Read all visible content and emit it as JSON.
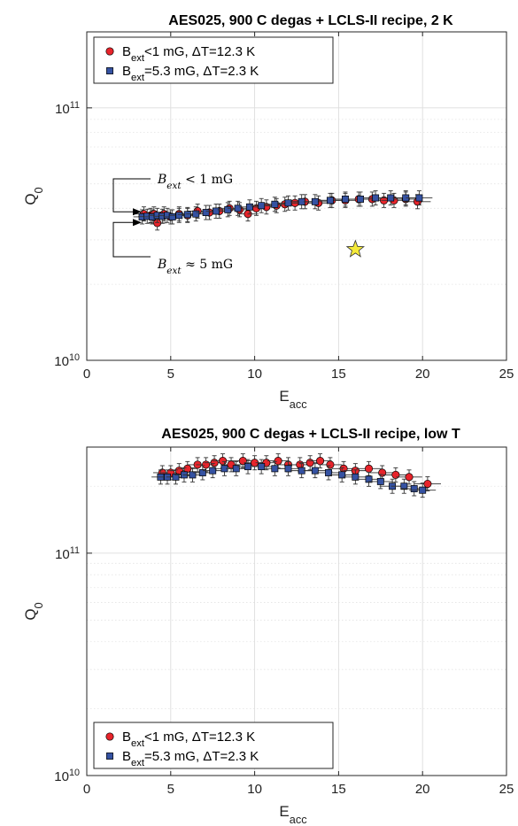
{
  "chart_data": [
    {
      "type": "scatter",
      "title": "AES025, 900 C degas + LCLS-II recipe, 2 K",
      "xlabel": "E",
      "xlabel_sub": "acc",
      "ylabel": "Q",
      "ylabel_sub": "0",
      "xlim": [
        0,
        25
      ],
      "ylim": [
        10000000000.0,
        200000000000.0
      ],
      "yscale": "log",
      "xticks": [
        "0",
        "5",
        "10",
        "15",
        "20",
        "25"
      ],
      "yticks": [
        {
          "base": "10",
          "exp": "10"
        },
        {
          "base": "10",
          "exp": "11"
        }
      ],
      "grid": true,
      "legend_position": "top-left",
      "series": [
        {
          "name_main": "B",
          "name_sub": "ext",
          "name_rest": "<1 mG, ΔT=12.3 K",
          "marker": "circle",
          "color": "#e8242b",
          "x": [
            3.4,
            3.8,
            4.0,
            4.2,
            4.6,
            5.0,
            5.5,
            6.0,
            6.6,
            7.3,
            7.9,
            8.5,
            9.1,
            9.6,
            10.1,
            10.7,
            11.3,
            11.8,
            12.4,
            13.0,
            13.8,
            14.6,
            15.4,
            16.2,
            17.0,
            17.7,
            18.3,
            19.0,
            19.7
          ],
          "y": [
            38000000000.0,
            37500000000.0,
            38000000000.0,
            35000000000.0,
            38000000000.0,
            37000000000.0,
            38000000000.0,
            37500000000.0,
            39000000000.0,
            38500000000.0,
            39000000000.0,
            40000000000.0,
            39500000000.0,
            38000000000.0,
            40000000000.0,
            40500000000.0,
            41000000000.0,
            41500000000.0,
            42000000000.0,
            42500000000.0,
            42000000000.0,
            43000000000.0,
            43000000000.0,
            43500000000.0,
            43500000000.0,
            43000000000.0,
            43000000000.0,
            43500000000.0,
            42500000000.0
          ]
        },
        {
          "name_main": "B",
          "name_sub": "ext",
          "name_rest": "=5.3 mG, ΔT=2.3 K",
          "marker": "square",
          "color": "#3552a2",
          "x": [
            3.3,
            3.6,
            3.9,
            4.2,
            4.5,
            4.8,
            5.1,
            5.5,
            6.0,
            6.5,
            7.1,
            7.7,
            8.4,
            9.0,
            9.7,
            10.4,
            11.2,
            12.0,
            12.8,
            13.6,
            14.5,
            15.4,
            16.3,
            17.2,
            18.1,
            19.0,
            19.8
          ],
          "y": [
            37000000000.0,
            37200000000.0,
            37000000000.0,
            37500000000.0,
            37200000000.0,
            37500000000.0,
            37000000000.0,
            37500000000.0,
            37800000000.0,
            38000000000.0,
            38500000000.0,
            39000000000.0,
            39500000000.0,
            40000000000.0,
            40500000000.0,
            41000000000.0,
            41500000000.0,
            42000000000.0,
            42500000000.0,
            42500000000.0,
            43000000000.0,
            43500000000.0,
            43500000000.0,
            44000000000.0,
            44000000000.0,
            44000000000.0,
            44000000000.0
          ]
        }
      ],
      "extra_points": [
        {
          "marker": "star",
          "color": "#f5ea3a",
          "x": 16.0,
          "y": 27500000000.0
        }
      ],
      "annotations": [
        {
          "main": "B",
          "sub": "ext",
          "rest": " < 1 mG"
        },
        {
          "main": "B",
          "sub": "ext",
          "rest": " ≈ 5 mG"
        }
      ]
    },
    {
      "type": "scatter",
      "title": "AES025, 900 C degas + LCLS-II recipe, low T",
      "xlabel": "E",
      "xlabel_sub": "acc",
      "ylabel": "Q",
      "ylabel_sub": "0",
      "xlim": [
        0,
        25
      ],
      "ylim": [
        10000000000.0,
        300000000000.0
      ],
      "yscale": "log",
      "xticks": [
        "0",
        "5",
        "10",
        "15",
        "20",
        "25"
      ],
      "yticks": [
        {
          "base": "10",
          "exp": "10"
        },
        {
          "base": "10",
          "exp": "11"
        }
      ],
      "grid": true,
      "legend_position": "bottom-left",
      "series": [
        {
          "name_main": "B",
          "name_sub": "ext",
          "name_rest": "<1 mG, ΔT=12.3 K",
          "marker": "circle",
          "color": "#e8242b",
          "x": [
            4.5,
            5.0,
            5.5,
            6.0,
            6.6,
            7.1,
            7.6,
            8.1,
            8.6,
            9.3,
            10.0,
            10.7,
            11.4,
            12.0,
            12.7,
            13.3,
            13.9,
            14.5,
            15.3,
            16.0,
            16.8,
            17.6,
            18.4,
            19.2,
            20.3
          ],
          "y": [
            230000000000.0,
            230000000000.0,
            235000000000.0,
            240000000000.0,
            250000000000.0,
            250000000000.0,
            255000000000.0,
            260000000000.0,
            250000000000.0,
            260000000000.0,
            255000000000.0,
            255000000000.0,
            260000000000.0,
            250000000000.0,
            250000000000.0,
            255000000000.0,
            260000000000.0,
            250000000000.0,
            240000000000.0,
            235000000000.0,
            240000000000.0,
            230000000000.0,
            225000000000.0,
            220000000000.0,
            205000000000.0
          ]
        },
        {
          "name_main": "B",
          "name_sub": "ext",
          "name_rest": "=5.3 mG, ΔT=2.3 K",
          "marker": "square",
          "color": "#3552a2",
          "x": [
            4.4,
            4.8,
            5.3,
            5.8,
            6.3,
            6.9,
            7.5,
            8.2,
            8.9,
            9.6,
            10.4,
            11.2,
            12.0,
            12.8,
            13.6,
            14.4,
            15.2,
            16.0,
            16.8,
            17.5,
            18.2,
            18.9,
            19.5,
            20.0
          ],
          "y": [
            220000000000.0,
            220000000000.0,
            220000000000.0,
            225000000000.0,
            225000000000.0,
            230000000000.0,
            235000000000.0,
            240000000000.0,
            240000000000.0,
            245000000000.0,
            245000000000.0,
            240000000000.0,
            240000000000.0,
            235000000000.0,
            235000000000.0,
            230000000000.0,
            225000000000.0,
            220000000000.0,
            215000000000.0,
            210000000000.0,
            200000000000.0,
            200000000000.0,
            195000000000.0,
            192000000000.0
          ]
        }
      ]
    }
  ]
}
